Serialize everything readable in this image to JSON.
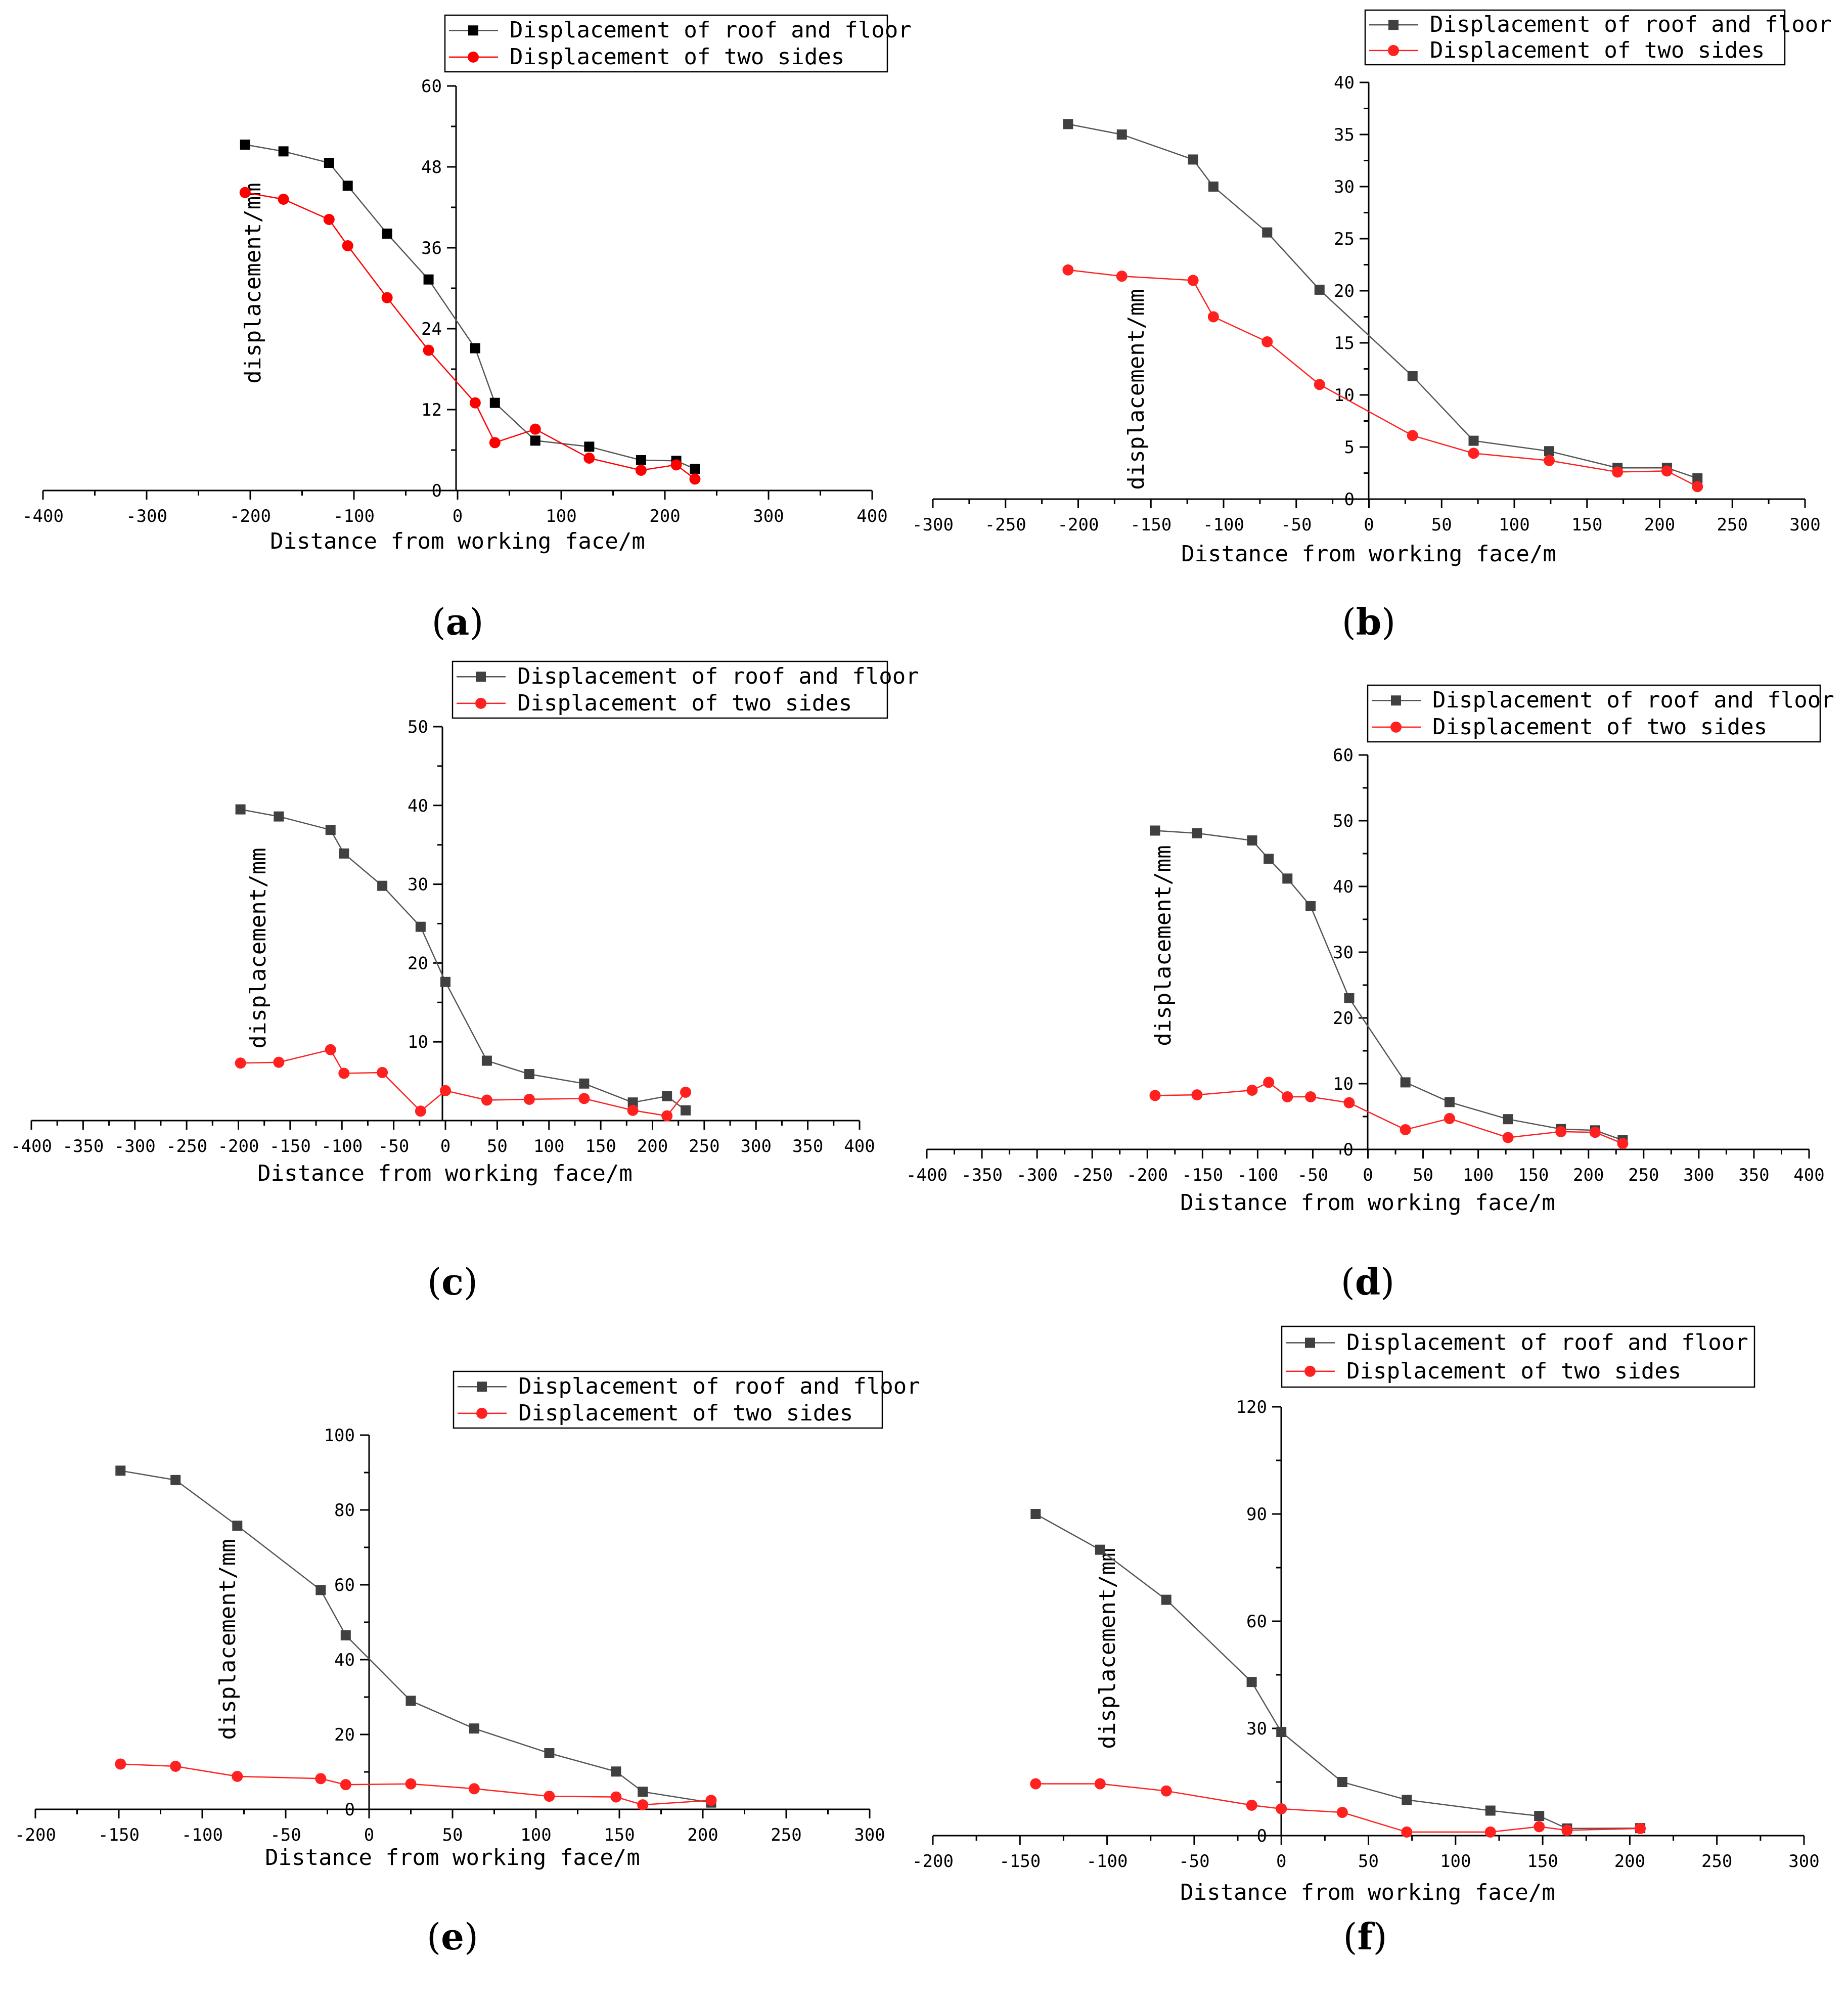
{
  "chart_data": [
    {
      "type": "line",
      "caption": "(a)",
      "caption_letter": "a",
      "xlabel": "Distance from working face/m",
      "ylabel": "displacement/mm",
      "xlim": [
        -400,
        400
      ],
      "xticks": [
        -400,
        -300,
        -200,
        -100,
        0,
        100,
        200,
        300,
        400
      ],
      "ylim": [
        0,
        60
      ],
      "yticks": [
        0,
        12,
        24,
        36,
        48,
        60
      ],
      "legend": [
        "Displacement of roof and floor",
        "Displacement of two sides"
      ],
      "series": [
        {
          "name": "Displacement of roof and floor",
          "color": "#000000",
          "marker": "square",
          "x": [
            -205,
            -168,
            -124,
            -106,
            -68,
            -28,
            17,
            36,
            75,
            127,
            177,
            211,
            229
          ],
          "y": [
            51.3,
            50.3,
            48.6,
            45.2,
            38.1,
            31.3,
            21.1,
            13.0,
            7.4,
            6.5,
            4.5,
            4.4,
            3.2
          ]
        },
        {
          "name": "Displacement of two sides",
          "color": "#ff0000",
          "marker": "circle",
          "x": [
            -205,
            -168,
            -124,
            -106,
            -68,
            -28,
            17,
            36,
            75,
            127,
            177,
            211,
            229
          ],
          "y": [
            44.2,
            43.2,
            40.2,
            36.3,
            28.6,
            20.8,
            13.0,
            7.1,
            9.1,
            4.8,
            3.0,
            3.8,
            1.7
          ]
        }
      ]
    },
    {
      "type": "line",
      "caption": "(b)",
      "caption_letter": "b",
      "xlabel": "Distance from working face/m",
      "ylabel": "displacement/mm",
      "xlim": [
        -300,
        300
      ],
      "xticks": [
        -300,
        -250,
        -200,
        -150,
        -100,
        -50,
        0,
        50,
        100,
        150,
        200,
        250,
        300
      ],
      "ylim": [
        0,
        40
      ],
      "yticks": [
        0,
        5,
        10,
        15,
        20,
        25,
        30,
        35,
        40
      ],
      "legend": [
        "Displacement of roof and floor",
        "Displacement of two sides"
      ],
      "series": [
        {
          "name": "Displacement of roof and floor",
          "color": "#404040",
          "marker": "square",
          "x": [
            -207,
            -170,
            -121,
            -107,
            -70,
            -34,
            30,
            72,
            124,
            171,
            205,
            226
          ],
          "y": [
            36.0,
            35.0,
            32.6,
            30.0,
            25.6,
            20.1,
            11.8,
            5.6,
            4.6,
            3.0,
            3.0,
            2.0
          ]
        },
        {
          "name": "Displacement of two sides",
          "color": "#ff2020",
          "marker": "circle",
          "x": [
            -207,
            -170,
            -121,
            -107,
            -70,
            -34,
            30,
            72,
            124,
            171,
            205,
            226
          ],
          "y": [
            22.0,
            21.4,
            21.0,
            17.5,
            15.1,
            11.0,
            6.1,
            4.4,
            3.7,
            2.6,
            2.7,
            1.2
          ]
        }
      ]
    },
    {
      "type": "line",
      "caption": "(c)",
      "caption_letter": "c",
      "xlabel": "Distance from working face/m",
      "ylabel": "displacement/mm",
      "xlim": [
        -400,
        400
      ],
      "xticks": [
        -400,
        -350,
        -300,
        -250,
        -200,
        -150,
        -100,
        -50,
        0,
        50,
        100,
        150,
        200,
        250,
        300,
        350,
        400
      ],
      "ylim": [
        0,
        50
      ],
      "yticks": [
        10,
        20,
        30,
        40,
        50
      ],
      "legend": [
        "Displacement of roof and floor",
        "Displacement of two sides"
      ],
      "series": [
        {
          "name": "Displacement of roof and floor",
          "color": "#404040",
          "marker": "square",
          "x": [
            -198,
            -161,
            -111,
            -98,
            -61,
            -24,
            0,
            40,
            81,
            134,
            181,
            214,
            232
          ],
          "y": [
            39.5,
            38.6,
            36.9,
            33.9,
            29.8,
            24.6,
            17.6,
            7.6,
            5.9,
            4.7,
            2.3,
            3.1,
            1.3
          ]
        },
        {
          "name": "Displacement of two sides",
          "color": "#ff2020",
          "marker": "circle",
          "x": [
            -198,
            -161,
            -111,
            -98,
            -61,
            -24,
            0,
            40,
            81,
            134,
            181,
            214,
            232
          ],
          "y": [
            7.3,
            7.4,
            9.0,
            6.0,
            6.1,
            1.2,
            3.8,
            2.6,
            2.7,
            2.8,
            1.3,
            0.6,
            3.6
          ]
        }
      ]
    },
    {
      "type": "line",
      "caption": "(d)",
      "caption_letter": "d",
      "xlabel": "Distance from working face/m",
      "ylabel": "displacement/mm",
      "xlim": [
        -400,
        400
      ],
      "xticks": [
        -400,
        -350,
        -300,
        -250,
        -200,
        -150,
        -100,
        -50,
        0,
        50,
        100,
        150,
        200,
        250,
        300,
        350,
        400
      ],
      "ylim": [
        0,
        60
      ],
      "yticks": [
        0,
        10,
        20,
        30,
        40,
        50,
        60
      ],
      "legend": [
        "Displacement of roof and floor",
        "Displacement of two sides"
      ],
      "series": [
        {
          "name": "Displacement of roof and floor",
          "color": "#404040",
          "marker": "square",
          "x": [
            -193,
            -155,
            -105,
            -90,
            -73,
            -52,
            -17,
            34,
            74,
            127,
            175,
            206,
            231
          ],
          "y": [
            48.5,
            48.1,
            47.0,
            44.2,
            41.2,
            37.0,
            23.0,
            10.2,
            7.2,
            4.6,
            3.1,
            2.9,
            1.4
          ]
        },
        {
          "name": "Displacement of two sides",
          "color": "#ff2020",
          "marker": "circle",
          "x": [
            -193,
            -155,
            -105,
            -90,
            -73,
            -52,
            -17,
            34,
            74,
            127,
            175,
            206,
            231
          ],
          "y": [
            8.2,
            8.3,
            9.0,
            10.2,
            8.0,
            8.0,
            7.1,
            3.0,
            4.7,
            1.8,
            2.7,
            2.6,
            0.9
          ]
        }
      ]
    },
    {
      "type": "line",
      "caption": "(e)",
      "caption_letter": "e",
      "xlabel": "Distance from working face/m",
      "ylabel": "displacement/mm",
      "xlim": [
        -200,
        300
      ],
      "xticks": [
        -200,
        -150,
        -100,
        -50,
        0,
        50,
        100,
        150,
        200,
        250,
        300
      ],
      "ylim": [
        0,
        100
      ],
      "yticks": [
        0,
        20,
        40,
        60,
        80,
        100
      ],
      "legend": [
        "Displacement of roof and floor",
        "Displacement of two sides"
      ],
      "series": [
        {
          "name": "Displacement of roof and floor",
          "color": "#404040",
          "marker": "square",
          "x": [
            -149,
            -116,
            -79,
            -29,
            -14,
            25,
            63,
            108,
            148,
            164,
            205
          ],
          "y": [
            90.5,
            88.0,
            75.8,
            58.6,
            46.5,
            29.0,
            21.6,
            15.0,
            10.1,
            4.7,
            1.8
          ]
        },
        {
          "name": "Displacement of two sides",
          "color": "#ff2020",
          "marker": "circle",
          "x": [
            -149,
            -116,
            -79,
            -29,
            -14,
            25,
            63,
            108,
            148,
            164,
            205
          ],
          "y": [
            12.1,
            11.5,
            8.8,
            8.2,
            6.6,
            6.8,
            5.5,
            3.5,
            3.3,
            1.2,
            2.4
          ]
        }
      ]
    },
    {
      "type": "line",
      "caption": "(f)",
      "caption_letter": "f",
      "xlabel": "Distance from working face/m",
      "ylabel": "displacement/mm",
      "xlim": [
        -200,
        300
      ],
      "xticks": [
        -200,
        -150,
        -100,
        -50,
        0,
        50,
        100,
        150,
        200,
        250,
        300
      ],
      "ylim": [
        0,
        120
      ],
      "yticks": [
        0,
        30,
        60,
        90,
        120
      ],
      "legend": [
        "Displacement of roof and floor",
        "Displacement of two sides"
      ],
      "series": [
        {
          "name": "Displacement of roof and floor",
          "color": "#404040",
          "marker": "square",
          "x": [
            -141,
            -104,
            -66,
            -17,
            0,
            35,
            72,
            120,
            148,
            164,
            206
          ],
          "y": [
            90.0,
            80.0,
            66.0,
            43.0,
            29.0,
            15.0,
            10.0,
            7.0,
            5.5,
            2.0,
            2.1
          ]
        },
        {
          "name": "Displacement of two sides",
          "color": "#ff2020",
          "marker": "circle",
          "x": [
            -141,
            -104,
            -66,
            -17,
            0,
            35,
            72,
            120,
            148,
            164,
            206
          ],
          "y": [
            14.5,
            14.5,
            12.5,
            8.5,
            7.5,
            6.5,
            1.0,
            1.0,
            2.5,
            1.5,
            2.0
          ]
        }
      ]
    }
  ]
}
